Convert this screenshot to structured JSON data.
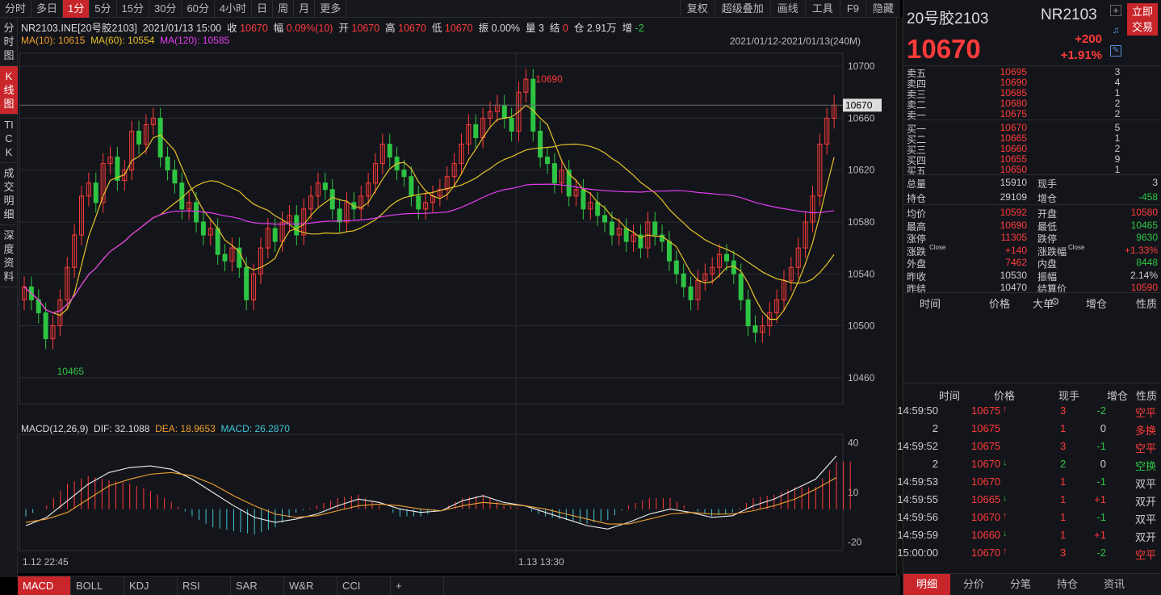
{
  "toolbar": {
    "timeframes": [
      "分时",
      "多日",
      "1分",
      "5分",
      "15分",
      "30分",
      "60分",
      "4小时",
      "日",
      "周",
      "月",
      "更多"
    ],
    "active": "1分",
    "tools": [
      "复权",
      "超级叠加",
      "画线",
      "工具",
      "F9",
      "隐藏"
    ]
  },
  "left_tabs": [
    "分时图",
    "K线图",
    "TICK",
    "成交明细",
    "深度资料"
  ],
  "left_active": "K线图",
  "info": {
    "symbol": "NR2103.INE[20号胶2103]",
    "datetime": "2021/01/13 15:00",
    "close_label": "收",
    "close": "10670",
    "change_label": "幅",
    "change": "0.09%(10)",
    "open_label": "开",
    "open": "10670",
    "high_label": "高",
    "high": "10670",
    "low_label": "低",
    "low": "10670",
    "amp_label": "振",
    "amp": "0.00%",
    "vol_label": "量",
    "vol": "3",
    "settle_label": "结",
    "settle": "0",
    "oi_label": "仓",
    "oi": "2.91万",
    "inc_label": "增",
    "inc": "-2"
  },
  "ma": {
    "ma10": "MA(10): 10615",
    "ma60": "MA(60): 10554",
    "ma120": "MA(120): 10585"
  },
  "date_range": "2021/01/12-2021/01/13(240M)",
  "macd_label": {
    "title": "MACD(12,26,9)",
    "dif": "DIF: 32.1088",
    "dea": "DEA: 18.9653",
    "macd": "MACD: 26.2870"
  },
  "time_labels": [
    "1.12 22:45",
    "1.13 13:30"
  ],
  "bottom_tabs": [
    "MACD",
    "BOLL",
    "KDJ",
    "RSI",
    "SAR",
    "W&R",
    "CCI",
    "+"
  ],
  "bottom_active": "MACD",
  "chart_data": {
    "type": "candlestick",
    "y_ticks": [
      10700,
      10660,
      10620,
      10580,
      10540,
      10500,
      10460
    ],
    "last_price_label": "10670",
    "max_label": "10690",
    "min_label": "10465",
    "close_path": [
      10530,
      10520,
      10510,
      10490,
      10500,
      10520,
      10545,
      10570,
      10600,
      10610,
      10595,
      10625,
      10630,
      10612,
      10620,
      10650,
      10640,
      10655,
      10660,
      10630,
      10620,
      10610,
      10590,
      10595,
      10580,
      10570,
      10575,
      10555,
      10550,
      10560,
      10545,
      10520,
      10540,
      10560,
      10575,
      10565,
      10580,
      10585,
      10570,
      10590,
      10600,
      10610,
      10605,
      10590,
      10580,
      10595,
      10590,
      10600,
      10610,
      10625,
      10640,
      10630,
      10620,
      10615,
      10600,
      10590,
      10595,
      10600,
      10605,
      10615,
      10625,
      10640,
      10655,
      10645,
      10660,
      10665,
      10670,
      10660,
      10650,
      10680,
      10690,
      10650,
      10630,
      10625,
      10610,
      10620,
      10600,
      10605,
      10590,
      10595,
      10585,
      10580,
      10570,
      10575,
      10565,
      10570,
      10560,
      10580,
      10570,
      10565,
      10550,
      10540,
      10530,
      10520,
      10535,
      10540,
      10545,
      10555,
      10550,
      10540,
      10520,
      10500,
      10495,
      10500,
      10510,
      10520,
      10535,
      10545,
      10560,
      10580,
      10600,
      10640,
      10660,
      10670
    ],
    "ma_colors": {
      "ma10": "#e6c228",
      "ma60": "#e6c228",
      "ma120": "#e43cf3"
    },
    "macd_ticks": [
      40,
      10,
      -20
    ],
    "dif": [
      -10,
      -5,
      5,
      15,
      22,
      25,
      26,
      24,
      18,
      10,
      2,
      -5,
      -8,
      -6,
      -3,
      2,
      6,
      4,
      0,
      -2,
      -1,
      5,
      8,
      4,
      2,
      -2,
      -6,
      -10,
      -12,
      -8,
      -3,
      0,
      -2,
      -5,
      -4,
      2,
      6,
      12,
      18,
      32
    ],
    "dea": [
      -8,
      -6,
      -2,
      6,
      14,
      18,
      21,
      22,
      20,
      15,
      8,
      2,
      -3,
      -5,
      -4,
      -1,
      2,
      3,
      2,
      0,
      -1,
      2,
      4,
      3,
      2,
      0,
      -3,
      -6,
      -9,
      -9,
      -6,
      -3,
      -2,
      -3,
      -3,
      -1,
      2,
      6,
      12,
      19
    ]
  },
  "right": {
    "name": "20号胶2103",
    "code": "NR2103",
    "trade_btn": "立即交易",
    "price": "10670",
    "change": "+200",
    "change_pct": "+1.91%",
    "asks": [
      [
        "卖五",
        "10695",
        "3"
      ],
      [
        "卖四",
        "10690",
        "4"
      ],
      [
        "卖三",
        "10685",
        "1"
      ],
      [
        "卖二",
        "10680",
        "2"
      ],
      [
        "卖一",
        "10675",
        "2"
      ]
    ],
    "bids": [
      [
        "买一",
        "10670",
        "5"
      ],
      [
        "买二",
        "10665",
        "1"
      ],
      [
        "买三",
        "10660",
        "2"
      ],
      [
        "买四",
        "10655",
        "9"
      ],
      [
        "买五",
        "10650",
        "1"
      ]
    ],
    "stats1": [
      [
        "总量",
        "15910",
        "现手",
        "3"
      ],
      [
        "持仓",
        "29109",
        "增仓",
        "-458"
      ]
    ],
    "stats2": [
      [
        "均价",
        "10592",
        "开盘",
        "10580"
      ],
      [
        "最高",
        "10690",
        "最低",
        "10465"
      ],
      [
        "涨停",
        "11305",
        "跌停",
        "9630"
      ],
      [
        "涨跌",
        "+140",
        "涨跌幅",
        "+1.33%"
      ],
      [
        "外盘",
        "7462",
        "内盘",
        "8448"
      ],
      [
        "昨收",
        "10530",
        "振幅",
        "2.14%"
      ],
      [
        "昨结",
        "10470",
        "结算价",
        "10590"
      ]
    ],
    "close_tag": "Close",
    "big_header": [
      "时间",
      "价格",
      "大单",
      "增仓",
      "性质"
    ],
    "trades_header": [
      "时间",
      "价格",
      "现手",
      "增仓",
      "性质"
    ],
    "trades": [
      [
        "14:59:50",
        "10675",
        "↑",
        "3",
        "-2",
        "空平"
      ],
      [
        "2",
        "10675",
        "",
        "1",
        "0",
        "多换"
      ],
      [
        "14:59:52",
        "10675",
        "",
        "3",
        "-1",
        "空平"
      ],
      [
        "2",
        "10670",
        "↓",
        "2",
        "0",
        "空换"
      ],
      [
        "14:59:53",
        "10670",
        "",
        "1",
        "-1",
        "双平"
      ],
      [
        "14:59:55",
        "10665",
        "↓",
        "1",
        "+1",
        "双开"
      ],
      [
        "14:59:56",
        "10670",
        "↑",
        "1",
        "-1",
        "双平"
      ],
      [
        "14:59:59",
        "10660",
        "↓",
        "1",
        "+1",
        "双开"
      ],
      [
        "15:00:00",
        "10670",
        "↑",
        "3",
        "-2",
        "空平"
      ]
    ],
    "bottom_tabs": [
      "明细",
      "分价",
      "分笔",
      "持仓",
      "资讯"
    ],
    "bottom_active": "明细"
  },
  "colors": {
    "up": "#ff3b3b",
    "down": "#2ec443",
    "accent": "#c8262b",
    "cyan_bar": "#3ec6d6"
  }
}
